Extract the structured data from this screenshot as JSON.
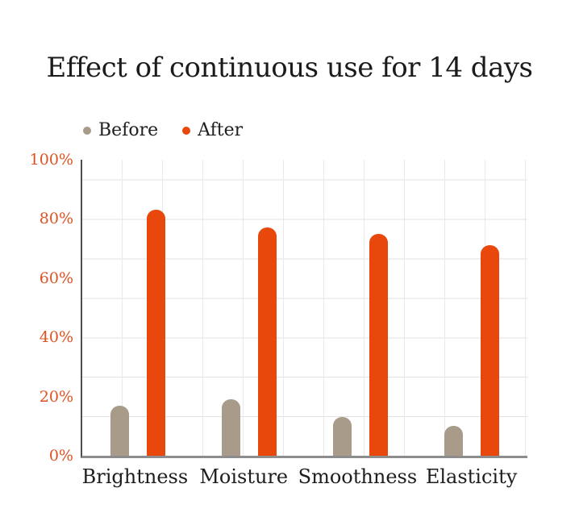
{
  "chart_data": {
    "type": "bar",
    "title": "Effect of continuous use for 14 days",
    "categories": [
      "Brightness",
      "Moisture",
      "Smoothness",
      "Elasticity"
    ],
    "series": [
      {
        "name": "Before",
        "color": "#a89b8a",
        "values": [
          17,
          19,
          13,
          10
        ]
      },
      {
        "name": "After",
        "color": "#e8480c",
        "values": [
          83,
          77,
          75,
          71
        ]
      }
    ],
    "xlabel": "",
    "ylabel": "",
    "unit": "%",
    "ylim": [
      0,
      100
    ],
    "ytick_labels": [
      "0%",
      "20%",
      "40%",
      "60%",
      "80%",
      "100%"
    ],
    "grid": true,
    "legend_position": "top-left",
    "colors": {
      "axis_tick_label": "#dd5222",
      "title_text": "#1b1b1b",
      "category_text": "#1e1e1e",
      "grid_line": "#e2e2e6",
      "axis_line_left": "#4f4f4f",
      "axis_line_bottom": "#8d8d8d",
      "background": "#ffffff"
    }
  }
}
